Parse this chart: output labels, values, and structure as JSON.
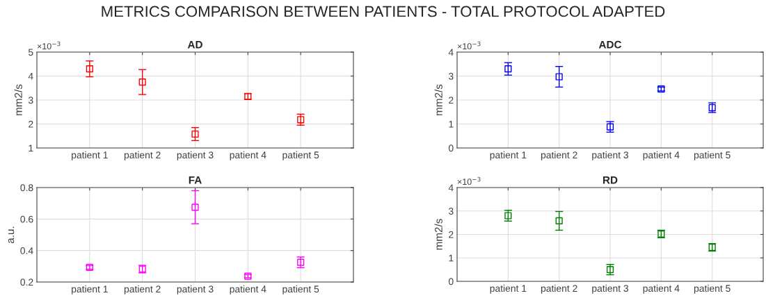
{
  "chart_data": [
    {
      "type": "scatter",
      "title": "AD",
      "ylabel": "mm2/s",
      "annotations": [
        "METRICS COMPARISON BETWEEN PATIENTS - TOTAL PROTOCOL ADAPTED",
        "×10$^{−3}$"
      ],
      "categories": [
        "patient 1",
        "patient 2",
        "patient 3",
        "patient 4",
        "patient 5"
      ],
      "series": [
        {
          "color": "#ff0000",
          "values": [
            4.3,
            3.75,
            1.58,
            3.15,
            2.18
          ],
          "errors": [
            0.33,
            0.52,
            0.27,
            0.12,
            0.23
          ]
        }
      ],
      "ylim": [
        1,
        5
      ],
      "yticks": [
        1,
        2,
        3,
        4,
        5
      ],
      "grid": true,
      "marker": "square"
    },
    {
      "type": "scatter",
      "title": "ADC",
      "ylabel": "mm2/s",
      "annotations": [
        "×10$^{−3}$"
      ],
      "categories": [
        "patient 1",
        "patient 2",
        "patient 3",
        "patient 4",
        "patient 5"
      ],
      "series": [
        {
          "color": "#0000ff",
          "values": [
            3.3,
            2.97,
            0.88,
            2.46,
            1.68
          ],
          "errors": [
            0.26,
            0.43,
            0.22,
            0.08,
            0.2
          ]
        }
      ],
      "ylim": [
        0,
        4
      ],
      "yticks": [
        0,
        1,
        2,
        3,
        4
      ],
      "grid": true,
      "marker": "square"
    },
    {
      "type": "scatter",
      "title": "FA",
      "ylabel": "a.u.",
      "categories": [
        "patient 1",
        "patient 2",
        "patient 3",
        "patient 4",
        "patient 5"
      ],
      "series": [
        {
          "color": "#ff00ff",
          "values": [
            0.293,
            0.282,
            0.675,
            0.237,
            0.325
          ],
          "errors": [
            0.012,
            0.024,
            0.105,
            0.01,
            0.034
          ]
        }
      ],
      "ylim": [
        0.2,
        0.8
      ],
      "yticks": [
        0.2,
        0.4,
        0.6,
        0.8
      ],
      "grid": true,
      "marker": "square"
    },
    {
      "type": "scatter",
      "title": "RD",
      "ylabel": "mm2/s",
      "annotations": [
        "×10$^{−3}$"
      ],
      "categories": [
        "patient 1",
        "patient 2",
        "patient 3",
        "patient 4",
        "patient 5"
      ],
      "series": [
        {
          "color": "#008000",
          "values": [
            2.8,
            2.58,
            0.5,
            2.02,
            1.45
          ],
          "errors": [
            0.23,
            0.4,
            0.22,
            0.16,
            0.16
          ]
        }
      ],
      "ylim": [
        0,
        4
      ],
      "yticks": [
        0,
        1,
        2,
        3,
        4
      ],
      "grid": true,
      "marker": "square"
    }
  ]
}
